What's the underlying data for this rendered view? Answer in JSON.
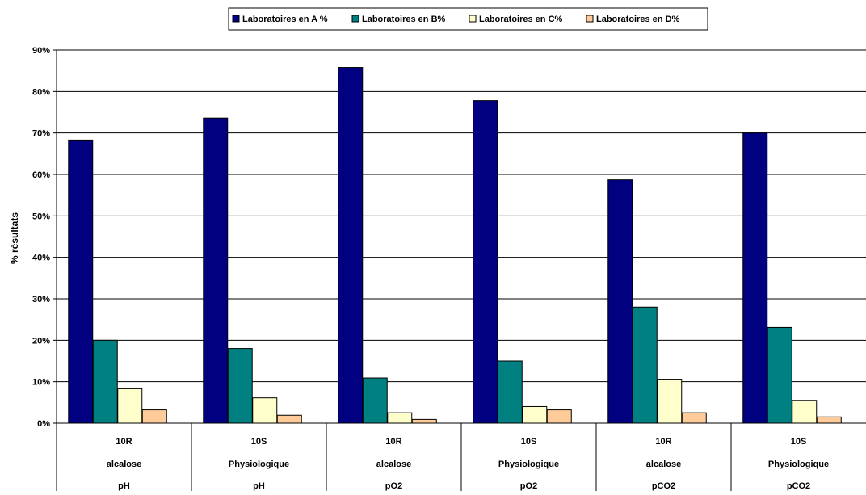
{
  "chart_data": {
    "type": "bar",
    "ylabel": "% résultats",
    "ylim": [
      0,
      90
    ],
    "yticks": [
      "0%",
      "10%",
      "20%",
      "30%",
      "40%",
      "50%",
      "60%",
      "70%",
      "80%",
      "90%"
    ],
    "grid": true,
    "legend_position": "top-center",
    "categories": [
      [
        "10R",
        "alcalose",
        "pH"
      ],
      [
        "10S",
        "Physiologique",
        "pH"
      ],
      [
        "10R",
        "alcalose",
        "pO2"
      ],
      [
        "10S",
        "Physiologique",
        "pO2"
      ],
      [
        "10R",
        "alcalose",
        "pCO2"
      ],
      [
        "10S",
        "Physiologique",
        "pCO2"
      ]
    ],
    "series": [
      {
        "name": "Laboratoires en A %",
        "color": "#000080",
        "values": [
          68.3,
          73.6,
          85.8,
          77.8,
          58.7,
          70.0
        ]
      },
      {
        "name": "Laboratoires en B%",
        "color": "#008080",
        "values": [
          20.0,
          18.0,
          10.9,
          15.0,
          28.0,
          23.1
        ]
      },
      {
        "name": "Laboratoires  en C%",
        "color": "#ffffcc",
        "values": [
          8.3,
          6.1,
          2.5,
          4.0,
          10.6,
          5.5
        ]
      },
      {
        "name": "Laboratoires en D%",
        "color": "#ffcc99",
        "values": [
          3.2,
          1.9,
          0.9,
          3.2,
          2.5,
          1.5
        ]
      }
    ]
  }
}
